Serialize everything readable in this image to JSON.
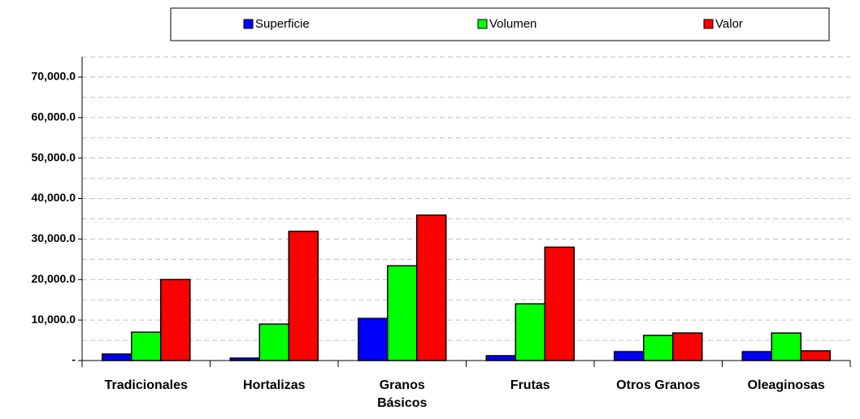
{
  "chart_data": {
    "type": "bar",
    "categories": [
      "Tradicionales",
      "Hortalizas",
      "Granos Básicos",
      "Frutas",
      "Otros Granos",
      "Oleaginosas"
    ],
    "series": [
      {
        "name": "Superficie",
        "color": "#0000ff",
        "values": [
          1600,
          600,
          10400,
          1200,
          2200,
          2200
        ]
      },
      {
        "name": "Volumen",
        "color": "#00ff00",
        "values": [
          7000,
          9000,
          23400,
          14000,
          6200,
          6800
        ]
      },
      {
        "name": "Valor",
        "color": "#ff0000",
        "values": [
          20000,
          31900,
          35900,
          28000,
          6800,
          2400
        ]
      }
    ],
    "ylim": [
      0,
      75000
    ],
    "yticks": [
      {
        "value": 0,
        "label": "-"
      },
      {
        "value": 10000,
        "label": "10,000.0"
      },
      {
        "value": 20000,
        "label": "20,000.0"
      },
      {
        "value": 30000,
        "label": "30,000.0"
      },
      {
        "value": 40000,
        "label": "40,000.0"
      },
      {
        "value": 50000,
        "label": "50,000.0"
      },
      {
        "value": 60000,
        "label": "60,000.0"
      },
      {
        "value": 70000,
        "label": "70,000.0"
      }
    ],
    "yminor": [
      5000,
      15000,
      25000,
      35000,
      45000,
      55000,
      65000,
      75000
    ],
    "grid": true,
    "legend": "top"
  }
}
